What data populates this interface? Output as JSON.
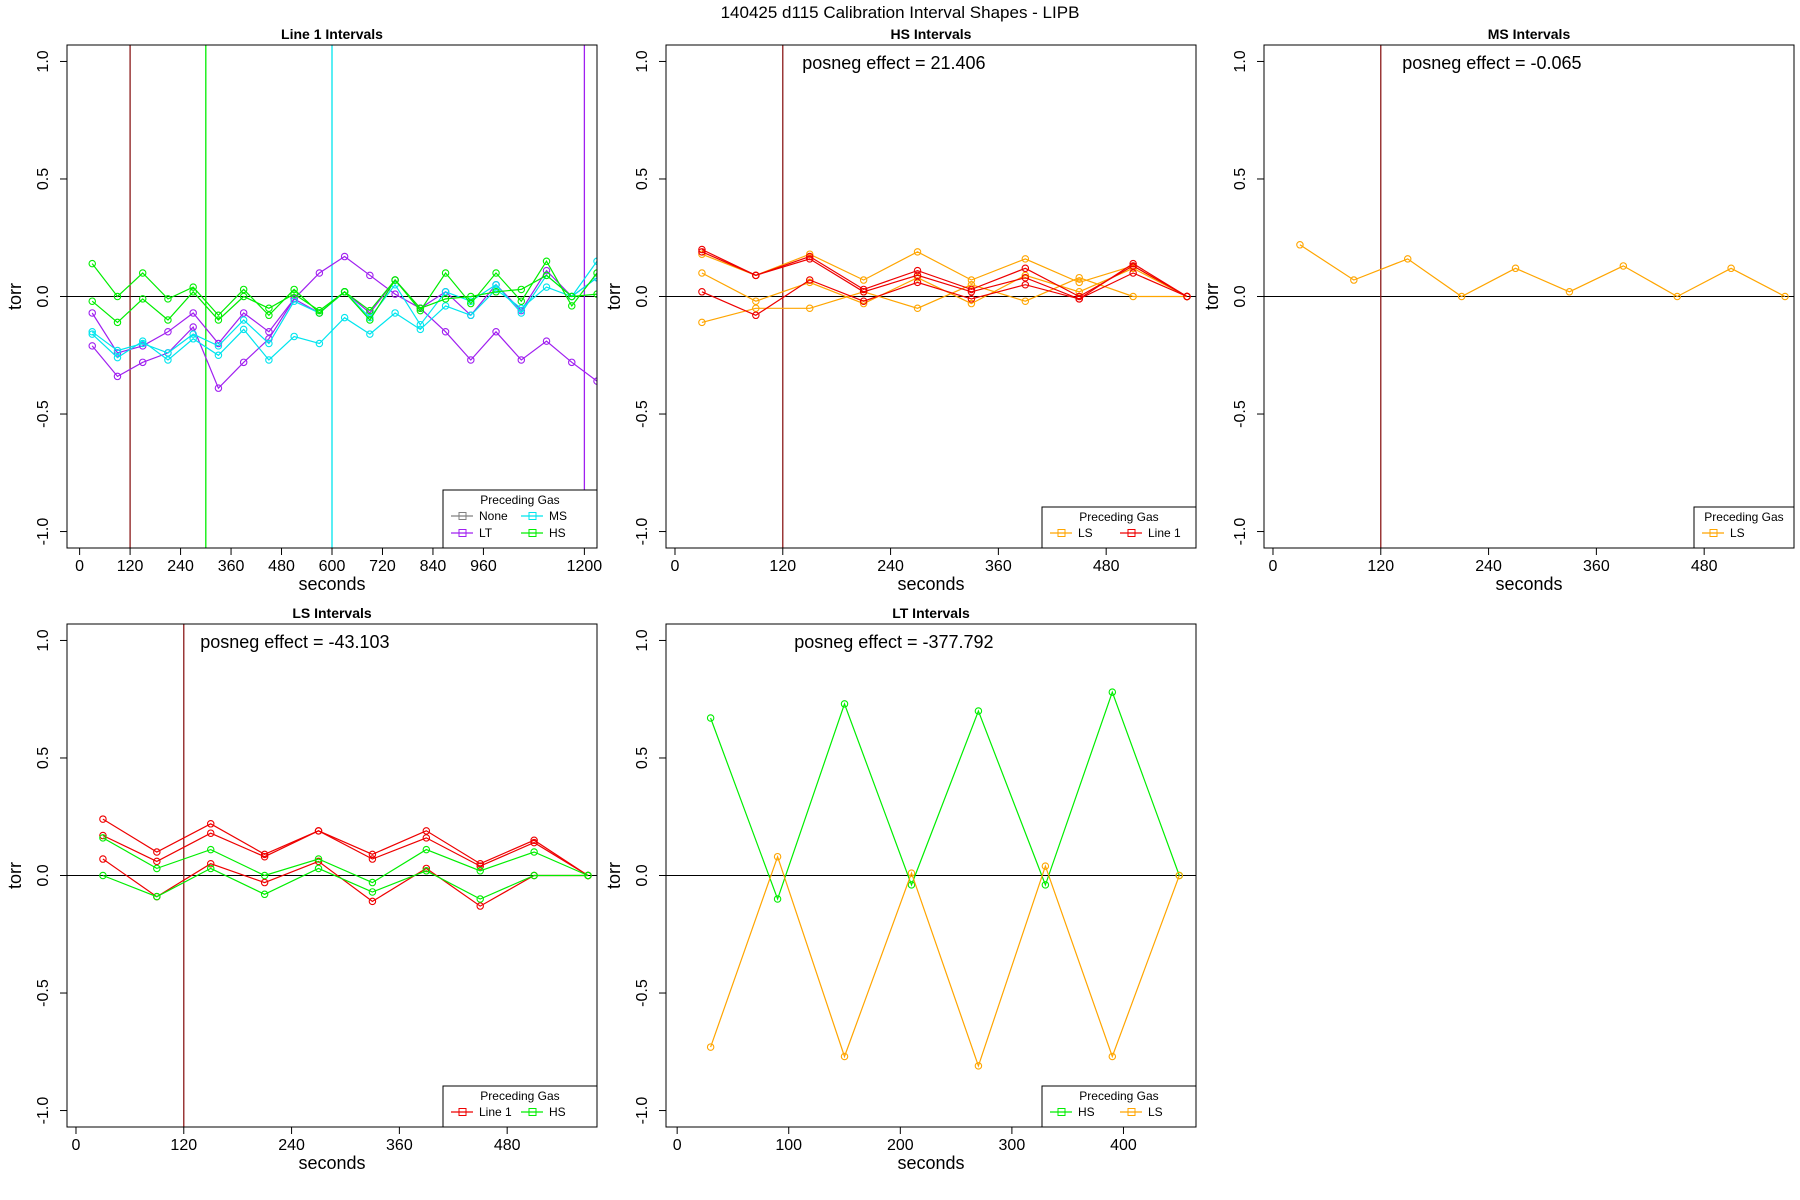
{
  "figure_title": "140425    d115   Calibration Interval Shapes - LIPB",
  "colors": {
    "axis": "#000000",
    "zero_line": "#000000",
    "None": "#808080",
    "LT": "#a020f0",
    "MS": "#00e5ee",
    "HS": "#00ee00",
    "LS": "#ffa500",
    "Line 1": "#ee0000",
    "vline_default": "#8b1a1a"
  },
  "chart_data": [
    {
      "type": "line",
      "title": "Line 1 Intervals",
      "xlabel": "seconds",
      "ylabel": "torr",
      "xlim": [
        -30,
        1230
      ],
      "ylim": [
        -1.07,
        1.07
      ],
      "xticks": [
        0,
        120,
        240,
        360,
        480,
        600,
        720,
        840,
        960,
        1200
      ],
      "yticks": [
        -1.0,
        -0.5,
        0.0,
        0.5,
        1.0
      ],
      "ytick_labels": [
        "-1.0",
        "-0.5",
        "0.0",
        "0.5",
        "1.0"
      ],
      "annotation": "",
      "vlines": [
        {
          "x": 120,
          "color": "vline_default"
        },
        {
          "x": 300,
          "color": "HS"
        },
        {
          "x": 600,
          "color": "MS"
        },
        {
          "x": 1200,
          "color": "LT"
        }
      ],
      "legend": {
        "title": "Preceding Gas",
        "columns": 2,
        "entries": [
          "None",
          "MS",
          "LT",
          "HS"
        ]
      },
      "series": [
        {
          "name": "LT",
          "x": [
            30,
            90,
            150,
            210,
            270,
            330,
            390,
            450,
            510,
            570,
            630,
            690,
            750,
            810,
            870,
            930,
            990,
            1050,
            1110,
            1170,
            1230
          ],
          "values": [
            -0.21,
            -0.34,
            -0.28,
            -0.24,
            -0.13,
            -0.39,
            -0.28,
            -0.18,
            -0.01,
            0.1,
            0.17,
            0.09,
            0.01,
            -0.05,
            -0.15,
            -0.27,
            -0.15,
            -0.27,
            -0.19,
            -0.28,
            -0.36
          ]
        },
        {
          "name": "LT",
          "x": [
            30,
            90,
            150,
            210,
            270,
            330,
            390,
            450,
            510,
            570,
            630,
            690,
            750,
            810,
            870,
            930,
            990,
            1050,
            1110,
            1170,
            1230
          ],
          "values": [
            -0.07,
            -0.24,
            -0.21,
            -0.15,
            -0.07,
            -0.2,
            -0.07,
            -0.15,
            -0.01,
            -0.07,
            0.02,
            -0.07,
            0.07,
            -0.05,
            0.02,
            -0.08,
            0.05,
            -0.06,
            0.11,
            0.0,
            0.08
          ]
        },
        {
          "name": "MS",
          "x": [
            30,
            90,
            150,
            210,
            270,
            330,
            390,
            450,
            510,
            570,
            630,
            690,
            750,
            810,
            870,
            930,
            990,
            1050,
            1110,
            1170,
            1230
          ],
          "values": [
            -0.16,
            -0.26,
            -0.19,
            -0.27,
            -0.18,
            -0.25,
            -0.14,
            -0.27,
            -0.17,
            -0.2,
            -0.09,
            -0.16,
            -0.07,
            -0.14,
            -0.04,
            -0.08,
            0.03,
            -0.05,
            0.04,
            0.0,
            0.15
          ]
        },
        {
          "name": "MS",
          "x": [
            30,
            90,
            150,
            210,
            270,
            330,
            390,
            450,
            510,
            570,
            630,
            690,
            750,
            810,
            870,
            930,
            990,
            1050,
            1110,
            1170,
            1230
          ],
          "values": [
            -0.15,
            -0.23,
            -0.2,
            -0.24,
            -0.16,
            -0.21,
            -0.1,
            -0.2,
            -0.02,
            -0.07,
            0.02,
            -0.09,
            0.05,
            -0.12,
            0.02,
            -0.02,
            0.05,
            -0.07,
            0.09,
            0.0,
            0.08
          ]
        },
        {
          "name": "HS",
          "x": [
            30,
            90,
            150,
            210,
            270,
            330,
            390,
            450,
            510,
            570,
            630,
            690,
            750,
            810,
            870,
            930,
            990,
            1050,
            1110,
            1170,
            1230
          ],
          "values": [
            0.14,
            0.0,
            0.1,
            -0.01,
            0.04,
            -0.08,
            0.03,
            -0.08,
            0.03,
            -0.07,
            0.02,
            -0.06,
            0.07,
            -0.06,
            0.1,
            -0.03,
            0.1,
            -0.02,
            0.15,
            -0.04,
            0.1
          ]
        },
        {
          "name": "HS",
          "x": [
            30,
            90,
            150,
            210,
            270,
            330,
            390,
            450,
            510,
            570,
            630,
            690,
            750,
            810,
            870,
            930,
            990,
            1050,
            1110,
            1170,
            1230
          ],
          "values": [
            -0.02,
            -0.11,
            -0.01,
            -0.1,
            0.02,
            -0.1,
            0.0,
            -0.05,
            0.01,
            -0.06,
            0.02,
            -0.1,
            0.07,
            -0.05,
            -0.01,
            0.0,
            0.02,
            0.03,
            0.09,
            0.0,
            0.01
          ]
        }
      ]
    },
    {
      "type": "line",
      "title": "HS Intervals",
      "xlabel": "seconds",
      "ylabel": "torr",
      "xlim": [
        -10,
        580
      ],
      "ylim": [
        -1.07,
        1.07
      ],
      "xticks": [
        0,
        120,
        240,
        360,
        480
      ],
      "yticks": [
        -1.0,
        -0.5,
        0.0,
        0.5,
        1.0
      ],
      "ytick_labels": [
        "-1.0",
        "-0.5",
        "0.0",
        "0.5",
        "1.0"
      ],
      "annotation": "posneg effect = 21.406",
      "vlines": [
        {
          "x": 120,
          "color": "vline_default"
        }
      ],
      "legend": {
        "title": "Preceding Gas",
        "columns": 2,
        "entries": [
          "LS",
          "Line 1"
        ]
      },
      "series": [
        {
          "name": "LS",
          "x": [
            30,
            90,
            150,
            210,
            270,
            330,
            390,
            450,
            510,
            570
          ],
          "values": [
            0.18,
            0.09,
            0.18,
            0.07,
            0.19,
            0.07,
            0.16,
            0.06,
            0.13,
            0.0
          ]
        },
        {
          "name": "LS",
          "x": [
            30,
            90,
            150,
            210,
            270,
            330,
            390,
            450,
            510,
            570
          ],
          "values": [
            0.1,
            -0.02,
            0.06,
            -0.03,
            0.08,
            -0.03,
            0.09,
            0.02,
            0.12,
            0.0
          ]
        },
        {
          "name": "LS",
          "x": [
            30,
            90,
            150,
            210,
            270,
            330,
            390,
            450,
            510,
            570
          ],
          "values": [
            -0.11,
            -0.05,
            -0.05,
            0.02,
            -0.05,
            0.05,
            -0.02,
            0.08,
            0.0,
            0.0
          ]
        },
        {
          "name": "Line 1",
          "x": [
            30,
            90,
            150,
            210,
            270,
            330,
            390,
            450,
            510,
            570
          ],
          "values": [
            0.2,
            0.09,
            0.17,
            0.03,
            0.11,
            0.03,
            0.12,
            0.0,
            0.13,
            0.0
          ]
        },
        {
          "name": "Line 1",
          "x": [
            30,
            90,
            150,
            210,
            270,
            330,
            390,
            450,
            510,
            570
          ],
          "values": [
            0.19,
            0.09,
            0.16,
            0.02,
            0.09,
            0.02,
            0.08,
            -0.01,
            0.1,
            0.0
          ]
        },
        {
          "name": "Line 1",
          "x": [
            30,
            90,
            150,
            210,
            270,
            330,
            390,
            450,
            510,
            570
          ],
          "values": [
            0.02,
            -0.08,
            0.07,
            -0.02,
            0.06,
            -0.01,
            0.05,
            -0.01,
            0.14,
            0.0
          ]
        }
      ]
    },
    {
      "type": "line",
      "title": "MS Intervals",
      "xlabel": "seconds",
      "ylabel": "torr",
      "xlim": [
        -10,
        580
      ],
      "ylim": [
        -1.07,
        1.07
      ],
      "xticks": [
        0,
        120,
        240,
        360,
        480
      ],
      "yticks": [
        -1.0,
        -0.5,
        0.0,
        0.5,
        1.0
      ],
      "ytick_labels": [
        "-1.0",
        "-0.5",
        "0.0",
        "0.5",
        "1.0"
      ],
      "annotation": "posneg effect = -0.065",
      "vlines": [
        {
          "x": 120,
          "color": "vline_default"
        }
      ],
      "legend": {
        "title": "Preceding Gas",
        "columns": 1,
        "entries": [
          "LS"
        ]
      },
      "series": [
        {
          "name": "LS",
          "x": [
            30,
            90,
            150,
            210,
            270,
            330,
            390,
            450,
            510,
            570
          ],
          "values": [
            0.22,
            0.07,
            0.16,
            0.0,
            0.12,
            0.02,
            0.13,
            0.0,
            0.12,
            0.0
          ]
        }
      ]
    },
    {
      "type": "line",
      "title": "LS Intervals",
      "xlabel": "seconds",
      "ylabel": "torr",
      "xlim": [
        -10,
        580
      ],
      "ylim": [
        -1.07,
        1.07
      ],
      "xticks": [
        0,
        120,
        240,
        360,
        480
      ],
      "yticks": [
        -1.0,
        -0.5,
        0.0,
        0.5,
        1.0
      ],
      "ytick_labels": [
        "-1.0",
        "-0.5",
        "0.0",
        "0.5",
        "1.0"
      ],
      "annotation": "posneg effect = -43.103",
      "vlines": [
        {
          "x": 120,
          "color": "vline_default"
        }
      ],
      "legend": {
        "title": "Preceding Gas",
        "columns": 2,
        "entries": [
          "Line 1",
          "HS"
        ]
      },
      "series": [
        {
          "name": "Line 1",
          "x": [
            30,
            90,
            150,
            210,
            270,
            330,
            390,
            450,
            510,
            570
          ],
          "values": [
            0.24,
            0.1,
            0.22,
            0.09,
            0.19,
            0.09,
            0.19,
            0.05,
            0.15,
            0.0
          ]
        },
        {
          "name": "Line 1",
          "x": [
            30,
            90,
            150,
            210,
            270,
            330,
            390,
            450,
            510,
            570
          ],
          "values": [
            0.17,
            0.06,
            0.18,
            0.08,
            0.19,
            0.07,
            0.16,
            0.04,
            0.14,
            0.0
          ]
        },
        {
          "name": "Line 1",
          "x": [
            30,
            90,
            150,
            210,
            270,
            330,
            390,
            450,
            510,
            570
          ],
          "values": [
            0.07,
            -0.09,
            0.05,
            -0.03,
            0.06,
            -0.11,
            0.03,
            -0.13,
            0.0,
            0.0
          ]
        },
        {
          "name": "HS",
          "x": [
            30,
            90,
            150,
            210,
            270,
            330,
            390,
            450,
            510,
            570
          ],
          "values": [
            0.16,
            0.03,
            0.11,
            0.0,
            0.07,
            -0.03,
            0.11,
            0.02,
            0.1,
            0.0
          ]
        },
        {
          "name": "HS",
          "x": [
            30,
            90,
            150,
            210,
            270,
            330,
            390,
            450,
            510,
            570
          ],
          "values": [
            0.0,
            -0.09,
            0.03,
            -0.08,
            0.03,
            -0.07,
            0.02,
            -0.1,
            0.0,
            0.0
          ]
        }
      ]
    },
    {
      "type": "line",
      "title": "LT Intervals",
      "xlabel": "seconds",
      "ylabel": "torr",
      "xlim": [
        -10,
        465
      ],
      "ylim": [
        -1.07,
        1.07
      ],
      "xticks": [
        0,
        100,
        200,
        300,
        400
      ],
      "yticks": [
        -1.0,
        -0.5,
        0.0,
        0.5,
        1.0
      ],
      "ytick_labels": [
        "-1.0",
        "-0.5",
        "0.0",
        "0.5",
        "1.0"
      ],
      "annotation": "posneg effect = -377.792",
      "vlines": [],
      "legend": {
        "title": "Preceding Gas",
        "columns": 2,
        "entries": [
          "HS",
          "LS"
        ]
      },
      "series": [
        {
          "name": "HS",
          "x": [
            30,
            90,
            150,
            210,
            270,
            330,
            390,
            450
          ],
          "values": [
            0.67,
            -0.1,
            0.73,
            -0.04,
            0.7,
            -0.04,
            0.78,
            0.0
          ]
        },
        {
          "name": "LS",
          "x": [
            30,
            90,
            150,
            210,
            270,
            330,
            390,
            450
          ],
          "values": [
            -0.73,
            0.08,
            -0.77,
            0.01,
            -0.81,
            0.04,
            -0.77,
            0.0
          ]
        }
      ]
    }
  ]
}
